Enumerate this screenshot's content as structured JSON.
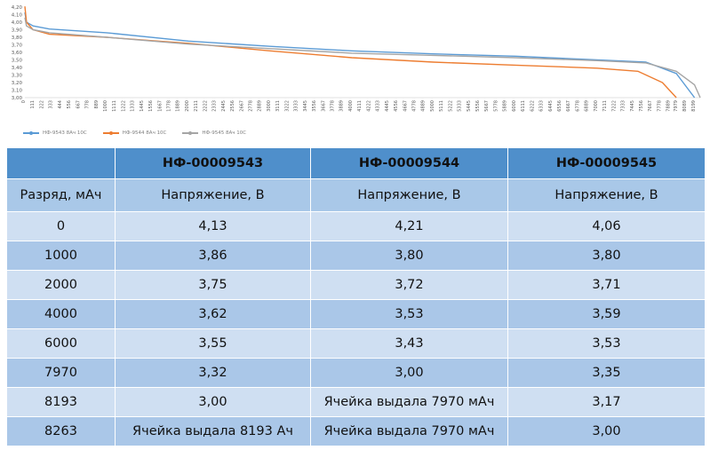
{
  "chart_data": {
    "type": "line",
    "x": [
      0,
      111,
      222,
      333,
      444,
      556,
      667,
      778,
      889,
      1000,
      1111,
      1222,
      1333,
      1445,
      1556,
      1667,
      1778,
      1889,
      2000,
      2111,
      2222,
      2333,
      2445,
      2556,
      2667,
      2778,
      2889,
      3000,
      3111,
      3222,
      3333,
      3445,
      3556,
      3667,
      3778,
      3889,
      4000,
      4111,
      4222,
      4333,
      4445,
      4556,
      4667,
      4778,
      4889,
      5000,
      5111,
      5222,
      5333,
      5445,
      5556,
      5667,
      5778,
      5889,
      6000,
      6111,
      6222,
      6333,
      6445,
      6556,
      6667,
      6778,
      6889,
      7000,
      7111,
      7222,
      7333,
      7445,
      7556,
      7667,
      7778,
      7889,
      7979,
      8089,
      8199
    ],
    "yticks": [
      "4,20",
      "4,10",
      "4,00",
      "3,90",
      "3,80",
      "3,70",
      "3,60",
      "3,50",
      "3,40",
      "3,30",
      "3,20",
      "3,10",
      "3,00"
    ],
    "ylim": [
      3.0,
      4.2
    ],
    "xlim": [
      0,
      8263
    ],
    "grid": false,
    "legend_position": "bottom-left",
    "series": [
      {
        "name": "НФ-9543 8Ач 10С",
        "color": "#5b9bd5",
        "points": [
          [
            0,
            4.13
          ],
          [
            20,
            4.0
          ],
          [
            100,
            3.95
          ],
          [
            300,
            3.91
          ],
          [
            1000,
            3.86
          ],
          [
            2000,
            3.75
          ],
          [
            3000,
            3.68
          ],
          [
            4000,
            3.62
          ],
          [
            5000,
            3.58
          ],
          [
            6000,
            3.55
          ],
          [
            7000,
            3.5
          ],
          [
            7600,
            3.47
          ],
          [
            7970,
            3.32
          ],
          [
            8193,
            3.0
          ]
        ]
      },
      {
        "name": "НФ-9544 8Ач 10С",
        "color": "#ed7d31",
        "points": [
          [
            0,
            4.21
          ],
          [
            20,
            4.0
          ],
          [
            100,
            3.9
          ],
          [
            300,
            3.84
          ],
          [
            1000,
            3.8
          ],
          [
            2000,
            3.72
          ],
          [
            3000,
            3.62
          ],
          [
            4000,
            3.53
          ],
          [
            5000,
            3.47
          ],
          [
            6000,
            3.43
          ],
          [
            7000,
            3.39
          ],
          [
            7500,
            3.35
          ],
          [
            7800,
            3.2
          ],
          [
            7970,
            3.0
          ]
        ]
      },
      {
        "name": "НФ-9545 8Ач 10С",
        "color": "#a5a5a5",
        "points": [
          [
            0,
            4.06
          ],
          [
            20,
            3.95
          ],
          [
            100,
            3.9
          ],
          [
            300,
            3.86
          ],
          [
            1000,
            3.8
          ],
          [
            2000,
            3.71
          ],
          [
            3000,
            3.65
          ],
          [
            4000,
            3.59
          ],
          [
            5000,
            3.56
          ],
          [
            6000,
            3.53
          ],
          [
            7000,
            3.49
          ],
          [
            7600,
            3.46
          ],
          [
            7970,
            3.35
          ],
          [
            8193,
            3.17
          ],
          [
            8263,
            3.0
          ]
        ]
      }
    ]
  },
  "table": {
    "headers": [
      "",
      "НФ-00009543",
      "НФ-00009544",
      "НФ-00009545"
    ],
    "subheaders": [
      "Разряд, мАч",
      "Напряжение, В",
      "Напряжение, В",
      "Напряжение, В"
    ],
    "rows": [
      [
        "0",
        "4,13",
        "4,21",
        "4,06"
      ],
      [
        "1000",
        "3,86",
        "3,80",
        "3,80"
      ],
      [
        "2000",
        "3,75",
        "3,72",
        "3,71"
      ],
      [
        "4000",
        "3,62",
        "3,53",
        "3,59"
      ],
      [
        "6000",
        "3,55",
        "3,43",
        "3,53"
      ],
      [
        "7970",
        "3,32",
        "3,00",
        "3,35"
      ],
      [
        "8193",
        "3,00",
        "Ячейка выдала 7970 мАч",
        "3,17"
      ],
      [
        "8263",
        "Ячейка выдала 8193 Ач",
        "Ячейка выдала 7970 мАч",
        "3,00"
      ]
    ]
  }
}
